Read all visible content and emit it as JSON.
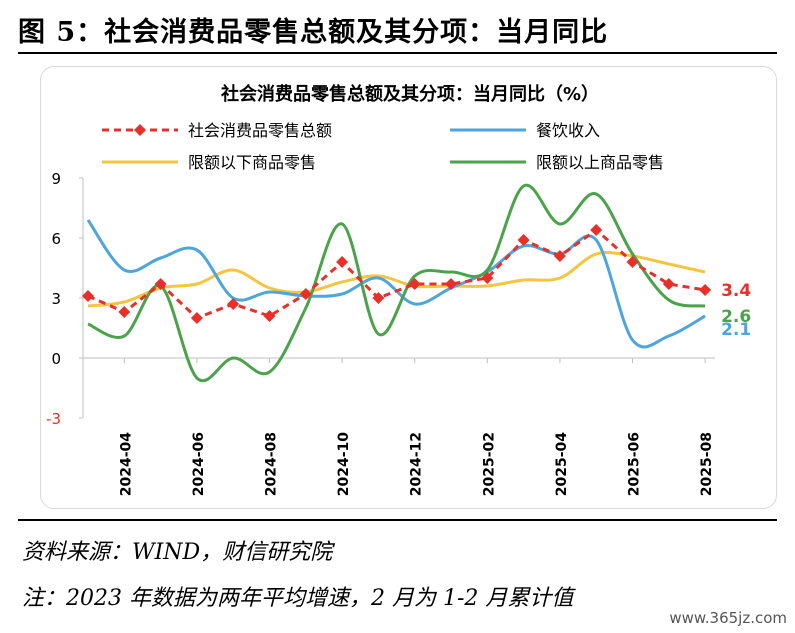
{
  "figure": {
    "title": "图 5：社会消费品零售总额及其分项：当月同比",
    "source": "资料来源：WIND，财信研究院",
    "note": "注：2023 年数据为两年平均增速，2 月为 1-2 月累计值",
    "watermark": "www.365jz.com"
  },
  "chart_data": {
    "type": "line",
    "title": "社会消费品零售总额及其分项：当月同比（%）",
    "x": [
      "2024-03",
      "2024-04",
      "2024-05",
      "2024-06",
      "2024-07",
      "2024-08",
      "2024-09",
      "2024-10",
      "2024-11",
      "2024-12",
      "2025-01",
      "2025-02",
      "2025-03",
      "2025-04",
      "2025-05",
      "2025-06",
      "2025-07",
      "2025-08"
    ],
    "x_tick_labels": [
      "2024-04",
      "2024-06",
      "2024-08",
      "2024-10",
      "2024-12",
      "2025-02",
      "2025-04",
      "2025-06",
      "2025-08"
    ],
    "ylim": [
      -3,
      9
    ],
    "yticks": [
      "9",
      "6",
      "3",
      "0",
      "-3"
    ],
    "grid": false,
    "legend_position": "top",
    "series": [
      {
        "name": "社会消费品零售总额",
        "color": "#e8302a",
        "style": "dashed-diamond",
        "values": [
          3.1,
          2.3,
          3.7,
          2.0,
          2.7,
          2.1,
          3.2,
          4.8,
          3.0,
          3.7,
          3.7,
          4.0,
          5.9,
          5.1,
          6.4,
          4.8,
          3.7,
          3.4
        ]
      },
      {
        "name": "餐饮收入",
        "color": "#4ea5dc",
        "style": "solid",
        "values": [
          6.9,
          4.4,
          5.0,
          5.4,
          3.0,
          3.3,
          3.1,
          3.2,
          4.0,
          2.7,
          3.5,
          4.3,
          5.6,
          5.2,
          5.9,
          0.9,
          1.1,
          2.1
        ]
      },
      {
        "name": "限额以下商品零售",
        "color": "#f5c542",
        "style": "solid",
        "values": [
          2.6,
          2.8,
          3.5,
          3.7,
          4.4,
          3.5,
          3.3,
          3.8,
          4.1,
          3.6,
          3.6,
          3.6,
          3.9,
          4.0,
          5.2,
          5.1,
          4.7,
          4.3
        ]
      },
      {
        "name": "限额以上商品零售",
        "color": "#4aa34a",
        "style": "solid",
        "values": [
          1.7,
          1.1,
          3.6,
          -1.0,
          0.0,
          -0.7,
          2.5,
          6.7,
          1.2,
          4.1,
          4.3,
          4.4,
          8.6,
          6.7,
          8.2,
          5.2,
          2.9,
          2.6
        ]
      }
    ],
    "end_labels": [
      {
        "series": "社会消费品零售总额",
        "text": "3.4",
        "color": "#e8302a"
      },
      {
        "series": "限额以上商品零售",
        "text": "2.6",
        "color": "#4aa34a"
      },
      {
        "series": "餐饮收入",
        "text": "2.1",
        "color": "#4ea5dc"
      }
    ]
  }
}
